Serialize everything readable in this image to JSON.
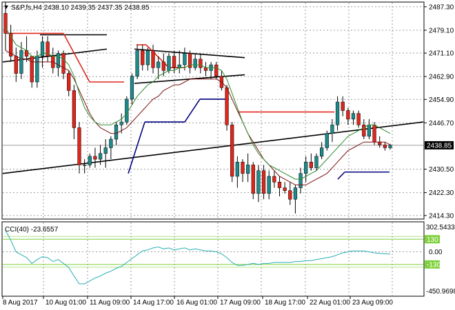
{
  "header": {
    "symbol_line": "S&P,fs,H4  2438.10 2439.35 2437.35 2438.85"
  },
  "price_axis": {
    "labels": [
      "2487.30",
      "2479.10",
      "2471.10",
      "2462.90",
      "2454.90",
      "2446.70",
      "2430.50",
      "2422.30",
      "2414.30"
    ],
    "values": [
      2487.3,
      2479.1,
      2471.1,
      2462.9,
      2454.9,
      2446.7,
      2430.5,
      2422.3,
      2414.3
    ],
    "current_label": "2438.85",
    "current_value": 2438.85
  },
  "indicator": {
    "title": "CCI(40) -23.6557",
    "axis_labels": [
      "302.5433",
      "0.00",
      "-450.9698"
    ],
    "axis_values": [
      302.5433,
      0,
      -450.9698
    ],
    "upper_level_label": "130",
    "lower_level_label": "-130",
    "upper_level": 130,
    "lower_level": -130
  },
  "time_axis": {
    "labels": [
      "8 Aug 2017",
      "10 Aug 01:00",
      "11 Aug 09:00",
      "14 Aug 17:00",
      "16 Aug 01:00",
      "17 Aug 09:00",
      "18 Aug 17:00",
      "22 Aug 01:00",
      "23 Aug 09:00"
    ]
  },
  "colors": {
    "bull": "#1e8a8a",
    "bear": "#e0261b",
    "ma_fast": "#2e8b2e",
    "ma_slow": "#7a1010",
    "support_red": "#e0261b",
    "support_navy": "#000080",
    "cci_line": "#27aeb6",
    "level_green": "#7fd13b"
  },
  "chart_data": {
    "type": "candlestick",
    "title": "S&P,fs,H4",
    "ylim": [
      2413.3,
      2488.7
    ],
    "candles": [
      [
        2485,
        2489,
        2472,
        2478
      ],
      [
        2478,
        2481,
        2468,
        2470
      ],
      [
        2470,
        2473,
        2461,
        2464
      ],
      [
        2464,
        2475,
        2462,
        2472
      ],
      [
        2472,
        2477,
        2468,
        2470
      ],
      [
        2470,
        2470,
        2459,
        2461
      ],
      [
        2461,
        2472,
        2459,
        2470
      ],
      [
        2470,
        2477,
        2466,
        2475
      ],
      [
        2475,
        2477,
        2468,
        2470
      ],
      [
        2470,
        2473,
        2464,
        2466
      ],
      [
        2466,
        2472,
        2463,
        2471
      ],
      [
        2471,
        2472,
        2462,
        2464
      ],
      [
        2464,
        2465,
        2456,
        2458
      ],
      [
        2458,
        2460,
        2441,
        2445
      ],
      [
        2445,
        2447,
        2429,
        2432
      ],
      [
        2432,
        2434,
        2429,
        2432
      ],
      [
        2432,
        2436,
        2431,
        2435
      ],
      [
        2435,
        2438,
        2431,
        2434
      ],
      [
        2434,
        2439,
        2432,
        2436
      ],
      [
        2436,
        2441,
        2431,
        2438
      ],
      [
        2438,
        2442,
        2434,
        2441
      ],
      [
        2441,
        2447,
        2439,
        2446
      ],
      [
        2446,
        2450,
        2443,
        2447
      ],
      [
        2447,
        2456,
        2446,
        2455
      ],
      [
        2455,
        2464,
        2453,
        2463
      ],
      [
        2463,
        2474,
        2462,
        2472
      ],
      [
        2472,
        2474,
        2465,
        2467
      ],
      [
        2467,
        2473,
        2465,
        2472
      ],
      [
        2472,
        2474,
        2464,
        2466
      ],
      [
        2466,
        2470,
        2462,
        2468
      ],
      [
        2468,
        2471,
        2463,
        2465
      ],
      [
        2465,
        2471,
        2464,
        2470
      ],
      [
        2470,
        2472,
        2464,
        2466
      ],
      [
        2466,
        2472,
        2464,
        2467
      ],
      [
        2467,
        2473,
        2465,
        2471
      ],
      [
        2471,
        2472,
        2464,
        2466
      ],
      [
        2466,
        2471,
        2465,
        2469
      ],
      [
        2469,
        2471,
        2464,
        2466
      ],
      [
        2466,
        2468,
        2463,
        2465
      ],
      [
        2465,
        2468,
        2462,
        2467
      ],
      [
        2467,
        2468,
        2462,
        2463
      ],
      [
        2463,
        2465,
        2458,
        2459
      ],
      [
        2459,
        2460,
        2444,
        2446
      ],
      [
        2446,
        2447,
        2426,
        2428
      ],
      [
        2428,
        2435,
        2424,
        2433
      ],
      [
        2433,
        2434,
        2426,
        2429
      ],
      [
        2429,
        2436,
        2426,
        2432
      ],
      [
        2432,
        2433,
        2420,
        2422
      ],
      [
        2422,
        2432,
        2419,
        2430
      ],
      [
        2430,
        2432,
        2420,
        2422
      ],
      [
        2422,
        2430,
        2420,
        2428
      ],
      [
        2428,
        2430,
        2424,
        2426
      ],
      [
        2426,
        2428,
        2421,
        2424
      ],
      [
        2424,
        2426,
        2422,
        2423
      ],
      [
        2423,
        2426,
        2418,
        2420
      ],
      [
        2420,
        2425,
        2415,
        2424
      ],
      [
        2424,
        2431,
        2422,
        2429
      ],
      [
        2429,
        2435,
        2426,
        2433
      ],
      [
        2433,
        2436,
        2430,
        2431
      ],
      [
        2431,
        2436,
        2430,
        2435
      ],
      [
        2435,
        2440,
        2434,
        2438
      ],
      [
        2438,
        2444,
        2437,
        2443
      ],
      [
        2443,
        2448,
        2440,
        2446
      ],
      [
        2446,
        2456,
        2444,
        2454
      ],
      [
        2454,
        2456,
        2449,
        2451
      ],
      [
        2451,
        2452,
        2446,
        2448
      ],
      [
        2448,
        2451,
        2446,
        2450
      ],
      [
        2450,
        2451,
        2445,
        2446
      ],
      [
        2446,
        2448,
        2441,
        2442
      ],
      [
        2442,
        2448,
        2441,
        2446
      ],
      [
        2446,
        2447,
        2439,
        2440
      ],
      [
        2440,
        2442,
        2438,
        2439
      ],
      [
        2439,
        2440,
        2437,
        2438
      ],
      [
        2438,
        2439.35,
        2437.35,
        2438.85
      ]
    ],
    "ma_fast": [
      2480,
      2477,
      2474,
      2473,
      2472,
      2470,
      2470,
      2471,
      2471,
      2470,
      2470,
      2469,
      2467,
      2463,
      2457,
      2452,
      2449,
      2447,
      2446,
      2446,
      2446,
      2447,
      2448,
      2450,
      2453,
      2456,
      2458,
      2460,
      2461,
      2463,
      2464,
      2465,
      2465,
      2466,
      2466,
      2467,
      2467,
      2467,
      2466,
      2466,
      2466,
      2465,
      2462,
      2457,
      2452,
      2447,
      2443,
      2439,
      2436,
      2434,
      2432,
      2431,
      2430,
      2429,
      2428,
      2427,
      2427,
      2428,
      2429,
      2430,
      2432,
      2434,
      2436,
      2438,
      2440,
      2442,
      2443,
      2444,
      2445,
      2446,
      2446,
      2445,
      2444,
      2443
    ],
    "ma_slow": [
      2472,
      2471,
      2470,
      2469,
      2469,
      2468,
      2468,
      2468,
      2468,
      2468,
      2467,
      2466,
      2465,
      2462,
      2458,
      2454,
      2450,
      2447,
      2445,
      2444,
      2443,
      2443,
      2444,
      2445,
      2447,
      2449,
      2451,
      2453,
      2455,
      2456,
      2458,
      2459,
      2460,
      2460,
      2461,
      2462,
      2462,
      2462,
      2462,
      2462,
      2462,
      2461,
      2459,
      2455,
      2451,
      2447,
      2443,
      2440,
      2437,
      2434,
      2432,
      2430,
      2428,
      2427,
      2426,
      2425,
      2425,
      2425,
      2426,
      2427,
      2428,
      2429,
      2431,
      2433,
      2435,
      2437,
      2438,
      2439,
      2440,
      2440,
      2440,
      2440,
      2440,
      2439
    ],
    "cci": [
      220,
      120,
      0,
      -30,
      -60,
      -120,
      -80,
      -50,
      -60,
      -100,
      -80,
      -120,
      -160,
      -250,
      -330,
      -330,
      -300,
      -270,
      -250,
      -220,
      -200,
      -170,
      -150,
      -110,
      -70,
      -30,
      10,
      20,
      40,
      50,
      30,
      40,
      20,
      30,
      40,
      20,
      30,
      20,
      10,
      10,
      0,
      -20,
      -60,
      -110,
      -140,
      -140,
      -130,
      -120,
      -130,
      -120,
      -120,
      -110,
      -110,
      -110,
      -110,
      -100,
      -100,
      -90,
      -90,
      -80,
      -70,
      -60,
      -50,
      -30,
      -10,
      0,
      10,
      10,
      10,
      0,
      -10,
      -15,
      -20,
      -23.6557
    ]
  }
}
